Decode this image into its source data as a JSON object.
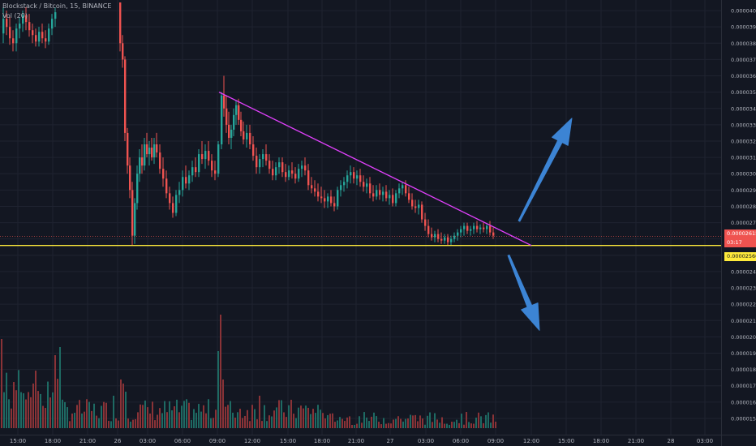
{
  "chart_data": {
    "type": "candlestick",
    "title": "Blockstack / Bitcoin, 15, BINANCE",
    "volume_label": "Vol (20)",
    "x_axis_ticks": [
      "15:00",
      "18:00",
      "21:00",
      "26",
      "03:00",
      "06:00",
      "09:00",
      "12:00",
      "15:00",
      "18:00",
      "21:00",
      "27",
      "03:00",
      "06:00",
      "09:00",
      "12:00",
      "15:00",
      "18:00",
      "21:00",
      "28",
      "03:00"
    ],
    "y_axis_ticks": [
      "0.00004000",
      "0.00003900",
      "0.00003800",
      "0.00003700",
      "0.00003600",
      "0.00003500",
      "0.00003400",
      "0.00003300",
      "0.00003200",
      "0.00003100",
      "0.00003000",
      "0.00002900",
      "0.00002800",
      "0.00002700",
      "0.00002600",
      "0.00002500",
      "0.00002400",
      "0.00002300",
      "0.00002200",
      "0.00002100",
      "0.00002000",
      "0.00001900",
      "0.00001800",
      "0.00001700",
      "0.00001600",
      "0.00001500"
    ],
    "y_axis_tick_values": [
      4e-05,
      3.9e-05,
      3.8e-05,
      3.7e-05,
      3.6e-05,
      3.5e-05,
      3.4e-05,
      3.3e-05,
      3.2e-05,
      3.1e-05,
      3e-05,
      2.9e-05,
      2.8e-05,
      2.7e-05,
      2.6e-05,
      2.5e-05,
      2.4e-05,
      2.3e-05,
      2.2e-05,
      2.1e-05,
      2e-05,
      1.9e-05,
      1.8e-05,
      1.7e-05,
      1.6e-05,
      1.5e-05
    ],
    "ylim": [
      1.46e-05,
      4.055e-05
    ],
    "current_price": "0.00002615",
    "current_price_value": 2.615e-05,
    "countdown": "03:17",
    "support_level": "0.00002560",
    "support_level_value": 2.56e-05,
    "trendline": {
      "from": {
        "x_index": 270,
        "y": 3.5e-05
      },
      "to": {
        "x_index": 655,
        "y": 2.56e-05
      }
    },
    "forecast_arrows": [
      {
        "direction": "up",
        "from": {
          "x_index": 640,
          "y": 2.71e-05
        },
        "to": {
          "x_index": 705,
          "y": 3.34e-05
        }
      },
      {
        "direction": "down",
        "from": {
          "x_index": 627,
          "y": 2.5e-05
        },
        "to": {
          "x_index": 665,
          "y": 2.04e-05
        }
      }
    ],
    "candles": [
      [
        3,
        3.86e-05,
        4.02e-05,
        3.8e-05,
        3.95e-05
      ],
      [
        7,
        3.95e-05,
        4e-05,
        3.85e-05,
        3.9e-05
      ],
      [
        11,
        3.9e-05,
        3.96e-05,
        3.79e-05,
        3.83e-05
      ],
      [
        15,
        3.83e-05,
        3.88e-05,
        3.75e-05,
        3.8e-05
      ],
      [
        19,
        3.8e-05,
        3.92e-05,
        3.75e-05,
        3.89e-05
      ],
      [
        23,
        3.89e-05,
        3.96e-05,
        3.83e-05,
        3.92e-05
      ],
      [
        27,
        3.92e-05,
        4e-05,
        3.87e-05,
        3.97e-05
      ],
      [
        31,
        3.97e-05,
        4.02e-05,
        3.88e-05,
        3.93e-05
      ],
      [
        35,
        3.93e-05,
        3.98e-05,
        3.84e-05,
        3.88e-05
      ],
      [
        39,
        3.88e-05,
        3.92e-05,
        3.8e-05,
        3.85e-05
      ],
      [
        43,
        3.85e-05,
        3.89e-05,
        3.78e-05,
        3.81e-05
      ],
      [
        47,
        3.81e-05,
        3.9e-05,
        3.78e-05,
        3.87e-05
      ],
      [
        51,
        3.87e-05,
        3.92e-05,
        3.8e-05,
        3.83e-05
      ],
      [
        55,
        3.83e-05,
        3.88e-05,
        3.77e-05,
        3.81e-05
      ],
      [
        59,
        3.81e-05,
        3.92e-05,
        3.79e-05,
        3.89e-05
      ],
      [
        63,
        3.89e-05,
        3.98e-05,
        3.85e-05,
        3.95e-05
      ],
      [
        67,
        3.95e-05,
        4.02e-05,
        3.9e-05,
        3.99e-05
      ],
      [
        147,
        4.05e-05,
        4.05e-05,
        3.75e-05,
        3.8e-05
      ],
      [
        150,
        3.8e-05,
        3.85e-05,
        3.65e-05,
        3.7e-05
      ],
      [
        153,
        3.7e-05,
        3.72e-05,
        3.2e-05,
        3.25e-05
      ],
      [
        156,
        3.25e-05,
        3.28e-05,
        3e-05,
        3.05e-05
      ],
      [
        159,
        3.05e-05,
        3.1e-05,
        2.85e-05,
        2.9e-05
      ],
      [
        162,
        2.9e-05,
        2.95e-05,
        2.56e-05,
        2.62e-05
      ],
      [
        165,
        2.62e-05,
        2.85e-05,
        2.57e-05,
        2.82e-05
      ],
      [
        168,
        2.82e-05,
        3.05e-05,
        2.78e-05,
        3e-05
      ],
      [
        171,
        3e-05,
        3.15e-05,
        2.95e-05,
        3.1e-05
      ],
      [
        174,
        3.1e-05,
        3.18e-05,
        3e-05,
        3.05e-05
      ],
      [
        177,
        3.05e-05,
        3.22e-05,
        3.02e-05,
        3.18e-05
      ],
      [
        180,
        3.18e-05,
        3.25e-05,
        3.1e-05,
        3.12e-05
      ],
      [
        183,
        3.12e-05,
        3.2e-05,
        3.05e-05,
        3.16e-05
      ],
      [
        186,
        3.16e-05,
        3.22e-05,
        3.08e-05,
        3.1e-05
      ],
      [
        189,
        3.1e-05,
        3.22e-05,
        3.06e-05,
        3.18e-05
      ],
      [
        192,
        3.18e-05,
        3.25e-05,
        3.1e-05,
        3.13e-05
      ],
      [
        196,
        3.13e-05,
        3.18e-05,
        3e-05,
        3.03e-05
      ],
      [
        200,
        3.03e-05,
        3.1e-05,
        2.92e-05,
        2.97e-05
      ],
      [
        204,
        2.97e-05,
        3.02e-05,
        2.85e-05,
        2.88e-05
      ],
      [
        208,
        2.88e-05,
        2.92e-05,
        2.78e-05,
        2.82e-05
      ],
      [
        212,
        2.82e-05,
        2.86e-05,
        2.73e-05,
        2.76e-05
      ],
      [
        216,
        2.76e-05,
        2.9e-05,
        2.74e-05,
        2.87e-05
      ],
      [
        220,
        2.87e-05,
        2.95e-05,
        2.82e-05,
        2.9e-05
      ],
      [
        224,
        2.9e-05,
        3.02e-05,
        2.86e-05,
        2.98e-05
      ],
      [
        228,
        2.98e-05,
        3.05e-05,
        2.91e-05,
        2.94e-05
      ],
      [
        232,
        2.94e-05,
        3.02e-05,
        2.9e-05,
        2.99e-05
      ],
      [
        236,
        2.99e-05,
        3.08e-05,
        2.95e-05,
        3.04e-05
      ],
      [
        240,
        3.04e-05,
        3.1e-05,
        2.98e-05,
        3.01e-05
      ],
      [
        244,
        3.01e-05,
        3.15e-05,
        2.98e-05,
        3.12e-05
      ],
      [
        248,
        3.12e-05,
        3.2e-05,
        3.06e-05,
        3.09e-05
      ],
      [
        252,
        3.09e-05,
        3.18e-05,
        3.03e-05,
        3.14e-05
      ],
      [
        256,
        3.14e-05,
        3.2e-05,
        3.05e-05,
        3.08e-05
      ],
      [
        260,
        3.08e-05,
        3.12e-05,
        2.98e-05,
        3.02e-05
      ],
      [
        264,
        3.02e-05,
        3.08e-05,
        2.96e-05,
        3e-05
      ],
      [
        268,
        3e-05,
        3.2e-05,
        2.98e-05,
        3.18e-05
      ],
      [
        272,
        3.18e-05,
        3.5e-05,
        3.15e-05,
        3.48e-05
      ],
      [
        275,
        3.48e-05,
        3.6e-05,
        3.35e-05,
        3.4e-05
      ],
      [
        278,
        3.4e-05,
        3.48e-05,
        3.25e-05,
        3.3e-05
      ],
      [
        281,
        3.3e-05,
        3.38e-05,
        3.18e-05,
        3.22e-05
      ],
      [
        284,
        3.22e-05,
        3.3e-05,
        3.15e-05,
        3.27e-05
      ],
      [
        287,
        3.27e-05,
        3.4e-05,
        3.23e-05,
        3.36e-05
      ],
      [
        290,
        3.36e-05,
        3.45e-05,
        3.3e-05,
        3.42e-05
      ],
      [
        293,
        3.42e-05,
        3.46e-05,
        3.3e-05,
        3.33e-05
      ],
      [
        296,
        3.33e-05,
        3.38e-05,
        3.23e-05,
        3.26e-05
      ],
      [
        299,
        3.26e-05,
        3.32e-05,
        3.18e-05,
        3.21e-05
      ],
      [
        303,
        3.21e-05,
        3.3e-05,
        3.16e-05,
        3.25e-05
      ],
      [
        307,
        3.25e-05,
        3.3e-05,
        3.15e-05,
        3.18e-05
      ],
      [
        311,
        3.18e-05,
        3.23e-05,
        3.08e-05,
        3.11e-05
      ],
      [
        315,
        3.11e-05,
        3.16e-05,
        3e-05,
        3.04e-05
      ],
      [
        319,
        3.04e-05,
        3.12e-05,
        3e-05,
        3.09e-05
      ],
      [
        323,
        3.09e-05,
        3.15e-05,
        3.04e-05,
        3.12e-05
      ],
      [
        327,
        3.12e-05,
        3.18e-05,
        3.05e-05,
        3.08e-05
      ],
      [
        331,
        3.08e-05,
        3.12e-05,
        3e-05,
        3.03e-05
      ],
      [
        335,
        3.03e-05,
        3.08e-05,
        2.96e-05,
        2.99e-05
      ],
      [
        339,
        2.99e-05,
        3.07e-05,
        2.96e-05,
        3.04e-05
      ],
      [
        343,
        3.04e-05,
        3.1e-05,
        3e-05,
        3.07e-05
      ],
      [
        347,
        3.07e-05,
        3.1e-05,
        2.98e-05,
        3.01e-05
      ],
      [
        351,
        3.01e-05,
        3.06e-05,
        2.95e-05,
        2.98e-05
      ],
      [
        355,
        2.98e-05,
        3.05e-05,
        2.96e-05,
        3.02e-05
      ],
      [
        359,
        3.02e-05,
        3.07e-05,
        2.97e-05,
        3e-05
      ],
      [
        363,
        3e-05,
        3.04e-05,
        2.94e-05,
        2.97e-05
      ],
      [
        367,
        2.97e-05,
        3.06e-05,
        2.95e-05,
        3.03e-05
      ],
      [
        371,
        3.03e-05,
        3.08e-05,
        2.98e-05,
        3.05e-05
      ],
      [
        375,
        3.05e-05,
        3.1e-05,
        2.99e-05,
        3.02e-05
      ],
      [
        379,
        3.02e-05,
        3.06e-05,
        2.9e-05,
        2.93e-05
      ],
      [
        383,
        2.93e-05,
        2.98e-05,
        2.88e-05,
        2.91e-05
      ],
      [
        387,
        2.91e-05,
        2.96e-05,
        2.86e-05,
        2.89e-05
      ],
      [
        391,
        2.89e-05,
        2.94e-05,
        2.83e-05,
        2.86e-05
      ],
      [
        395,
        2.86e-05,
        2.92e-05,
        2.82e-05,
        2.85e-05
      ],
      [
        399,
        2.85e-05,
        2.9e-05,
        2.79e-05,
        2.83e-05
      ],
      [
        403,
        2.83e-05,
        2.88e-05,
        2.79e-05,
        2.86e-05
      ],
      [
        407,
        2.86e-05,
        2.9e-05,
        2.8e-05,
        2.82e-05
      ],
      [
        411,
        2.82e-05,
        2.86e-05,
        2.77e-05,
        2.8e-05
      ],
      [
        415,
        2.8e-05,
        2.92e-05,
        2.78e-05,
        2.9e-05
      ],
      [
        419,
        2.9e-05,
        2.96e-05,
        2.86e-05,
        2.93e-05
      ],
      [
        423,
        2.93e-05,
        2.98e-05,
        2.89e-05,
        2.95e-05
      ],
      [
        427,
        2.95e-05,
        3.02e-05,
        2.91e-05,
        2.99e-05
      ],
      [
        431,
        2.99e-05,
        3.05e-05,
        2.94e-05,
        3.01e-05
      ],
      [
        435,
        3.01e-05,
        3.04e-05,
        2.94e-05,
        2.97e-05
      ],
      [
        439,
        2.97e-05,
        3.02e-05,
        2.93e-05,
        2.99e-05
      ],
      [
        443,
        2.99e-05,
        3.03e-05,
        2.92e-05,
        2.95e-05
      ],
      [
        447,
        2.95e-05,
        2.99e-05,
        2.89e-05,
        2.92e-05
      ],
      [
        451,
        2.92e-05,
        2.97e-05,
        2.88e-05,
        2.94e-05
      ],
      [
        455,
        2.94e-05,
        2.98e-05,
        2.85e-05,
        2.88e-05
      ],
      [
        459,
        2.88e-05,
        2.93e-05,
        2.83e-05,
        2.86e-05
      ],
      [
        463,
        2.86e-05,
        2.93e-05,
        2.84e-05,
        2.9e-05
      ],
      [
        467,
        2.9e-05,
        2.94e-05,
        2.84e-05,
        2.87e-05
      ],
      [
        471,
        2.87e-05,
        2.92e-05,
        2.83e-05,
        2.89e-05
      ],
      [
        475,
        2.89e-05,
        2.93e-05,
        2.83e-05,
        2.85e-05
      ],
      [
        479,
        2.85e-05,
        2.9e-05,
        2.81e-05,
        2.87e-05
      ],
      [
        483,
        2.87e-05,
        2.91e-05,
        2.8e-05,
        2.82e-05
      ],
      [
        487,
        2.82e-05,
        2.9e-05,
        2.8e-05,
        2.88e-05
      ],
      [
        491,
        2.88e-05,
        2.94e-05,
        2.85e-05,
        2.91e-05
      ],
      [
        495,
        2.91e-05,
        2.95e-05,
        2.87e-05,
        2.93e-05
      ],
      [
        499,
        2.93e-05,
        2.96e-05,
        2.86e-05,
        2.88e-05
      ],
      [
        503,
        2.88e-05,
        2.92e-05,
        2.82e-05,
        2.84e-05
      ],
      [
        507,
        2.84e-05,
        2.88e-05,
        2.78e-05,
        2.8e-05
      ],
      [
        511,
        2.8e-05,
        2.84e-05,
        2.76e-05,
        2.79e-05
      ],
      [
        515,
        2.79e-05,
        2.84e-05,
        2.75e-05,
        2.81e-05
      ],
      [
        519,
        2.81e-05,
        2.83e-05,
        2.7e-05,
        2.72e-05
      ],
      [
        523,
        2.72e-05,
        2.76e-05,
        2.65e-05,
        2.68e-05
      ],
      [
        527,
        2.68e-05,
        2.72e-05,
        2.61e-05,
        2.63e-05
      ],
      [
        531,
        2.63e-05,
        2.67e-05,
        2.59e-05,
        2.61e-05
      ],
      [
        535,
        2.61e-05,
        2.65e-05,
        2.58e-05,
        2.63e-05
      ],
      [
        539,
        2.63e-05,
        2.66e-05,
        2.58e-05,
        2.6e-05
      ],
      [
        543,
        2.6e-05,
        2.64e-05,
        2.57e-05,
        2.59e-05
      ],
      [
        547,
        2.59e-05,
        2.63e-05,
        2.57e-05,
        2.61e-05
      ],
      [
        551,
        2.61e-05,
        2.63e-05,
        2.56e-05,
        2.58e-05
      ],
      [
        555,
        2.58e-05,
        2.62e-05,
        2.56e-05,
        2.6e-05
      ],
      [
        559,
        2.6e-05,
        2.64e-05,
        2.58e-05,
        2.62e-05
      ],
      [
        563,
        2.62e-05,
        2.66e-05,
        2.59e-05,
        2.64e-05
      ],
      [
        567,
        2.64e-05,
        2.68e-05,
        2.61e-05,
        2.66e-05
      ],
      [
        571,
        2.66e-05,
        2.7e-05,
        2.62e-05,
        2.68e-05
      ],
      [
        575,
        2.68e-05,
        2.7e-05,
        2.63e-05,
        2.65e-05
      ],
      [
        579,
        2.65e-05,
        2.68e-05,
        2.62e-05,
        2.66e-05
      ],
      [
        583,
        2.66e-05,
        2.7e-05,
        2.63e-05,
        2.68e-05
      ],
      [
        587,
        2.68e-05,
        2.71e-05,
        2.64e-05,
        2.66e-05
      ],
      [
        591,
        2.66e-05,
        2.69e-05,
        2.63e-05,
        2.67e-05
      ],
      [
        595,
        2.67e-05,
        2.7e-05,
        2.64e-05,
        2.66e-05
      ],
      [
        599,
        2.66e-05,
        2.69e-05,
        2.63e-05,
        2.68e-05
      ],
      [
        603,
        2.68e-05,
        2.71e-05,
        2.62e-05,
        2.64e-05
      ],
      [
        607,
        2.64e-05,
        2.67e-05,
        2.6e-05,
        2.62e-05
      ]
    ]
  },
  "colors": {
    "background": "#131722",
    "grid": "#1f2330",
    "up": "#26a69a",
    "down": "#ef5350",
    "up_volume": "#1e6a63",
    "down_volume": "#8a3337",
    "axis_text": "#b2b5be",
    "trendline": "#e040fb",
    "support_line": "#ffeb3b",
    "forecast_arrow": "#3c84d4",
    "price_tag": "#ef5350",
    "support_tag": "#ffeb3b"
  }
}
